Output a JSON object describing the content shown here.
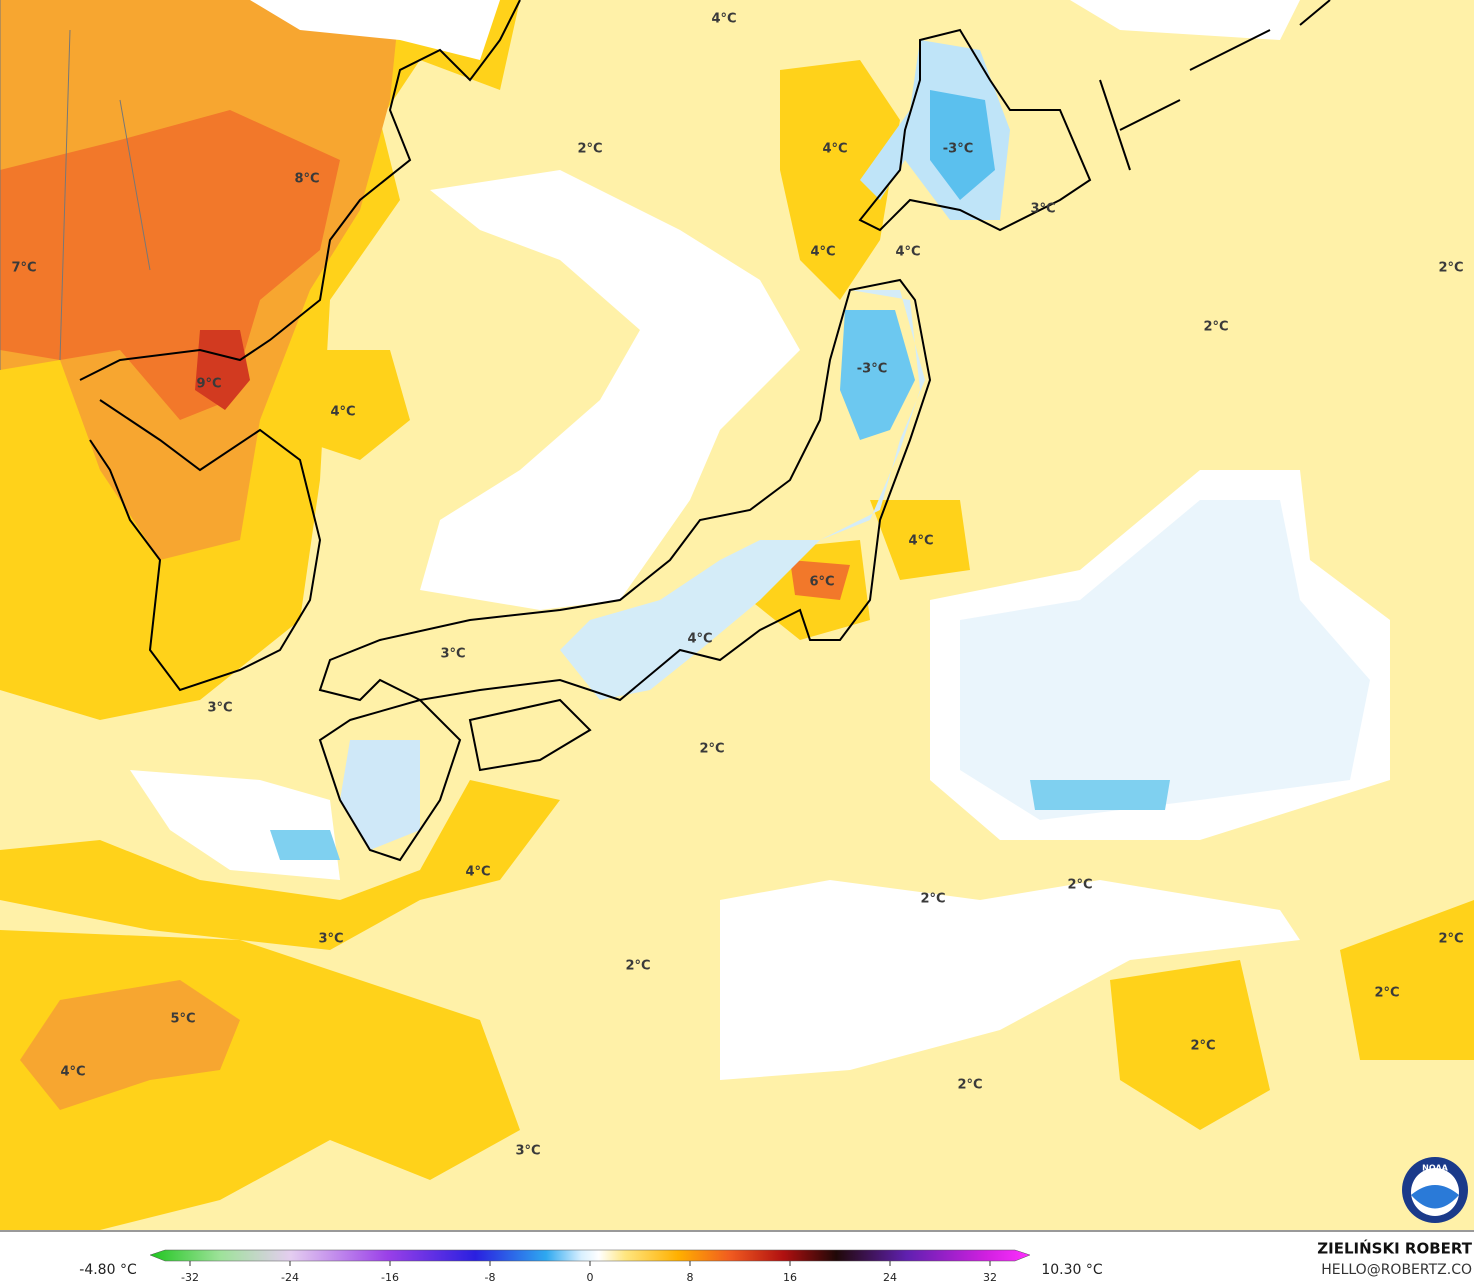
{
  "map": {
    "labels": [
      "4°C",
      "2°C",
      "4°C",
      "-3°C",
      "8°C",
      "3°C",
      "4°C",
      "4°C",
      "7°C",
      "2°C",
      "2°C",
      "-3°C",
      "9°C",
      "4°C",
      "4°C",
      "6°C",
      "4°C",
      "3°C",
      "3°C",
      "2°C",
      "4°C",
      "2°C",
      "2°C",
      "3°C",
      "2°C",
      "2°C",
      "2°C",
      "5°C",
      "2°C",
      "4°C",
      "2°C",
      "3°C"
    ]
  },
  "legend": {
    "min_label": "-4.80 °C",
    "max_label": "10.30 °C",
    "ticks": [
      -32,
      -24,
      -16,
      -8,
      0,
      8,
      16,
      24,
      32
    ]
  },
  "credits": {
    "author": "ZIELIŃSKI ROBERT",
    "contact": "HELLO@ROBERTZ.CO",
    "logo": "NOAA"
  }
}
